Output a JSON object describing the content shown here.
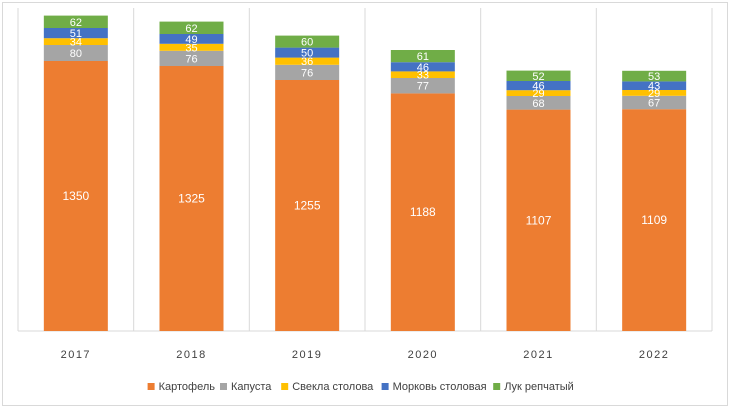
{
  "chart_data": {
    "type": "bar",
    "stacked": true,
    "categories": [
      "2017",
      "2018",
      "2019",
      "2020",
      "2021",
      "2022"
    ],
    "series": [
      {
        "name": "Картофель",
        "color": "#ED7D31",
        "values": [
          1350,
          1325,
          1255,
          1188,
          1107,
          1109
        ]
      },
      {
        "name": "Капуста",
        "color": "#A5A5A5",
        "values": [
          80,
          76,
          76,
          77,
          68,
          67
        ]
      },
      {
        "name": "Свекла столова",
        "color": "#FFC000",
        "values": [
          34,
          35,
          36,
          33,
          29,
          29
        ]
      },
      {
        "name": "Морковь столовая",
        "color": "#4472C4",
        "values": [
          51,
          49,
          50,
          46,
          46,
          43
        ]
      },
      {
        "name": "Лук репчатый",
        "color": "#70AD47",
        "values": [
          62,
          62,
          60,
          61,
          52,
          53
        ]
      }
    ],
    "ylim": [
      0,
      1650
    ],
    "grid": "vertical category separators",
    "legend": "bottom"
  }
}
